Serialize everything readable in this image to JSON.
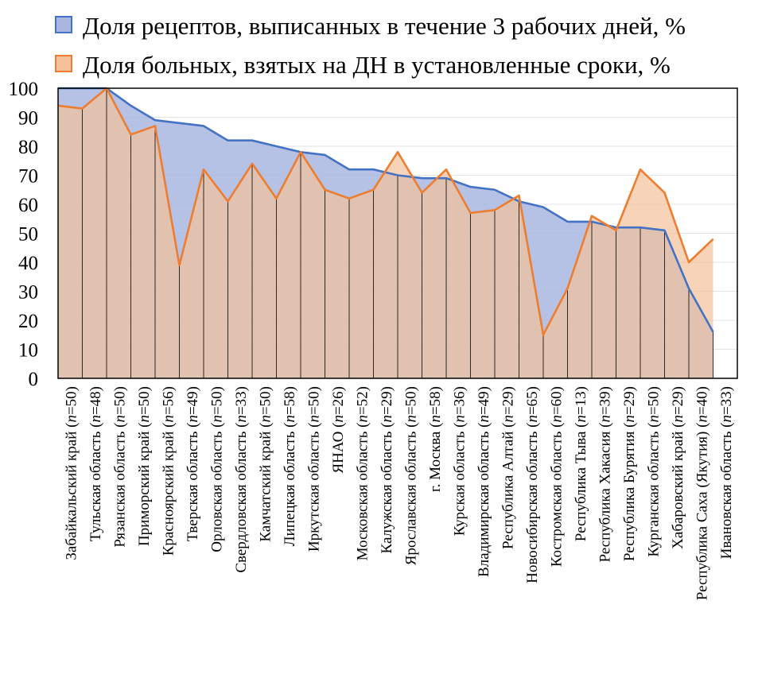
{
  "chart_data": {
    "type": "area",
    "categories": [
      "Забайкальский край (n=50)",
      "Тульская область (n=48)",
      "Рязанская область (n=50)",
      "Приморский край (n=50)",
      "Красноярский край (n=56)",
      "Тверская область (n=49)",
      "Орловская область (n=50)",
      "Свердловская область (n=33)",
      "Камчатский край (n=50)",
      "Липецкая область (n=58)",
      "Иркутская область (n=50)",
      "ЯНАО (n=26)",
      "Московская область (n=52)",
      "Калужская область (n=29)",
      "Ярославская область (n=50)",
      "г. Москва (n=58)",
      "Курская область (n=36)",
      "Владимирская область (n=49)",
      "Республика Алтай (n=29)",
      "Новосибирская область (n=65)",
      "Костромская область (n=60)",
      "Республика Тыва (n=13)",
      "Республика Хакасия (n=39)",
      "Республика Бурятия (n=29)",
      "Курганская область (n=50)",
      "Хабаровский край (n=29)",
      "Республика Саха (Якутия) (n=40)",
      "Ивановская область (n=33)"
    ],
    "series": [
      {
        "name": "Доля рецептов, выписанных в течение 3 рабочих дней, %",
        "color": "#4472C4",
        "fill": "#A8B6E0",
        "values": [
          100,
          100,
          100,
          94,
          89,
          88,
          87,
          82,
          82,
          80,
          78,
          77,
          72,
          72,
          70,
          69,
          69,
          66,
          65,
          61,
          59,
          54,
          54,
          52,
          52,
          51,
          31,
          16
        ]
      },
      {
        "name": "Доля больных, взятых на ДН в установленные сроки, %",
        "color": "#ED7D31",
        "fill": "#F3C29A",
        "values": [
          94,
          93,
          100,
          84,
          87,
          39,
          72,
          61,
          74,
          62,
          78,
          65,
          62,
          65,
          78,
          64,
          72,
          57,
          58,
          63,
          15,
          31,
          56,
          51,
          72,
          64,
          40,
          48
        ]
      }
    ],
    "yticks": [
      "0",
      "10",
      "20",
      "30",
      "40",
      "50",
      "60",
      "70",
      "80",
      "90",
      "100"
    ],
    "ylim": [
      0,
      100
    ],
    "grid": true,
    "legend_position": "top"
  }
}
